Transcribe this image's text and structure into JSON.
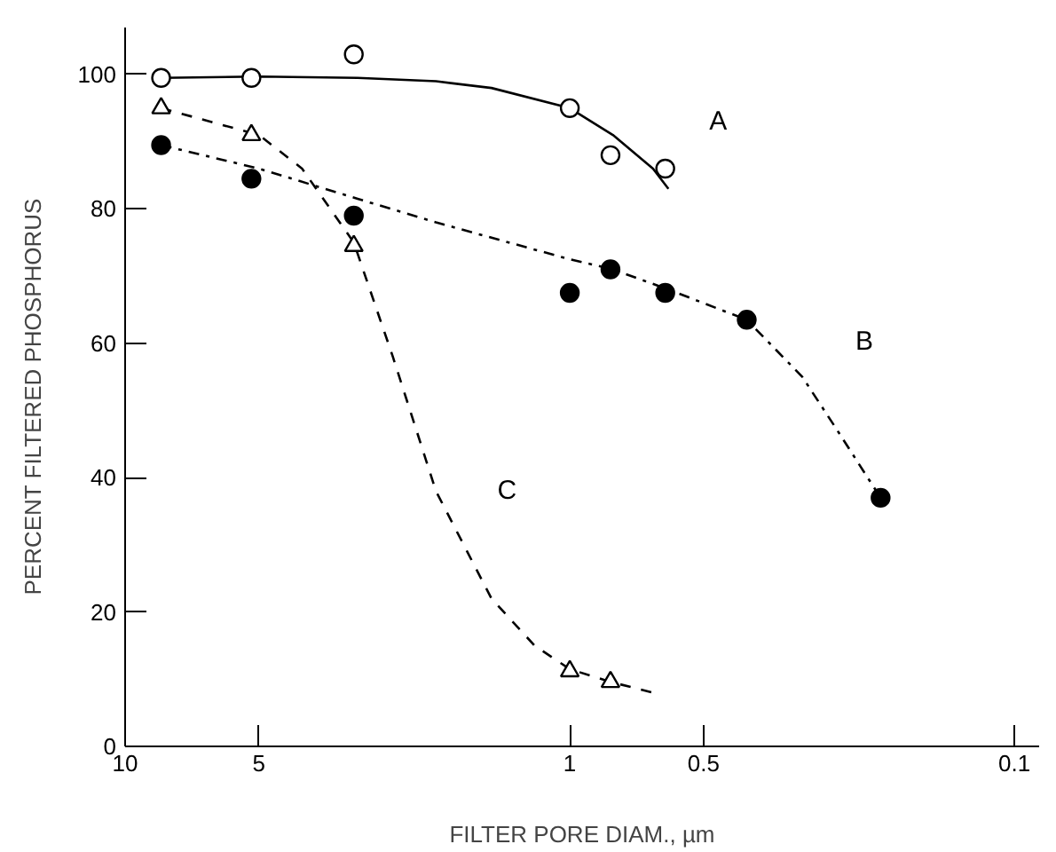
{
  "chart_data": {
    "type": "scatter",
    "xlabel": "FILTER PORE DIAM., µm",
    "ylabel": "PERCENT    FILTERED PHOSPHORUS",
    "log": "x",
    "xlim": [
      10,
      0.088
    ],
    "xticks": [
      10,
      5,
      1,
      0.5,
      0.1
    ],
    "ylim": [
      0,
      107
    ],
    "yticks": [
      0,
      20,
      40,
      60,
      80,
      100
    ],
    "grid": false,
    "legend": false,
    "series": [
      {
        "type": "line",
        "name": "A",
        "color": "#000000",
        "line_style": "solid",
        "x": [
          8.3,
          5,
          3,
          2,
          1.5,
          1.0,
          0.8,
          0.65,
          0.6
        ],
        "values": [
          99.5,
          99.7,
          99.5,
          99,
          98,
          95,
          91,
          86,
          83
        ]
      },
      {
        "type": "line",
        "name": "B",
        "color": "#000000",
        "line_style": "dashdot",
        "x": [
          8.3,
          5,
          3,
          2,
          1,
          0.8,
          0.6,
          0.4,
          0.3,
          0.25,
          0.2
        ],
        "values": [
          89.5,
          86,
          81.5,
          78,
          72.5,
          71,
          68,
          63.5,
          55,
          47,
          37
        ]
      },
      {
        "type": "line",
        "name": "C",
        "color": "#000000",
        "line_style": "dashed",
        "x": [
          8.3,
          5,
          4,
          3.06,
          2.5,
          2,
          1.5,
          1.2,
          1.0,
          0.81,
          0.65
        ],
        "values": [
          95,
          91,
          86,
          75,
          58,
          38,
          22,
          15,
          11.5,
          9.6,
          8
        ]
      },
      {
        "color": "#000000",
        "marker": "circle",
        "x": [
          8.3,
          5.2,
          3.06,
          1.0,
          0.81,
          0.61
        ],
        "values": [
          99.5,
          99.5,
          103,
          95,
          88,
          86
        ]
      },
      {
        "color": "#000000",
        "marker": "circle",
        "x": [
          8.3,
          5.2,
          3.06,
          1.0,
          0.81,
          0.61,
          0.4,
          0.2
        ],
        "values": [
          89.5,
          84.5,
          79,
          67.5,
          71,
          67.5,
          63.5,
          37
        ]
      },
      {
        "color": "#000000",
        "marker": "triangle",
        "x": [
          8.3,
          5.2,
          3.06,
          1.0,
          0.81
        ],
        "values": [
          95,
          91,
          74.5,
          11.2,
          9.6
        ]
      }
    ]
  }
}
